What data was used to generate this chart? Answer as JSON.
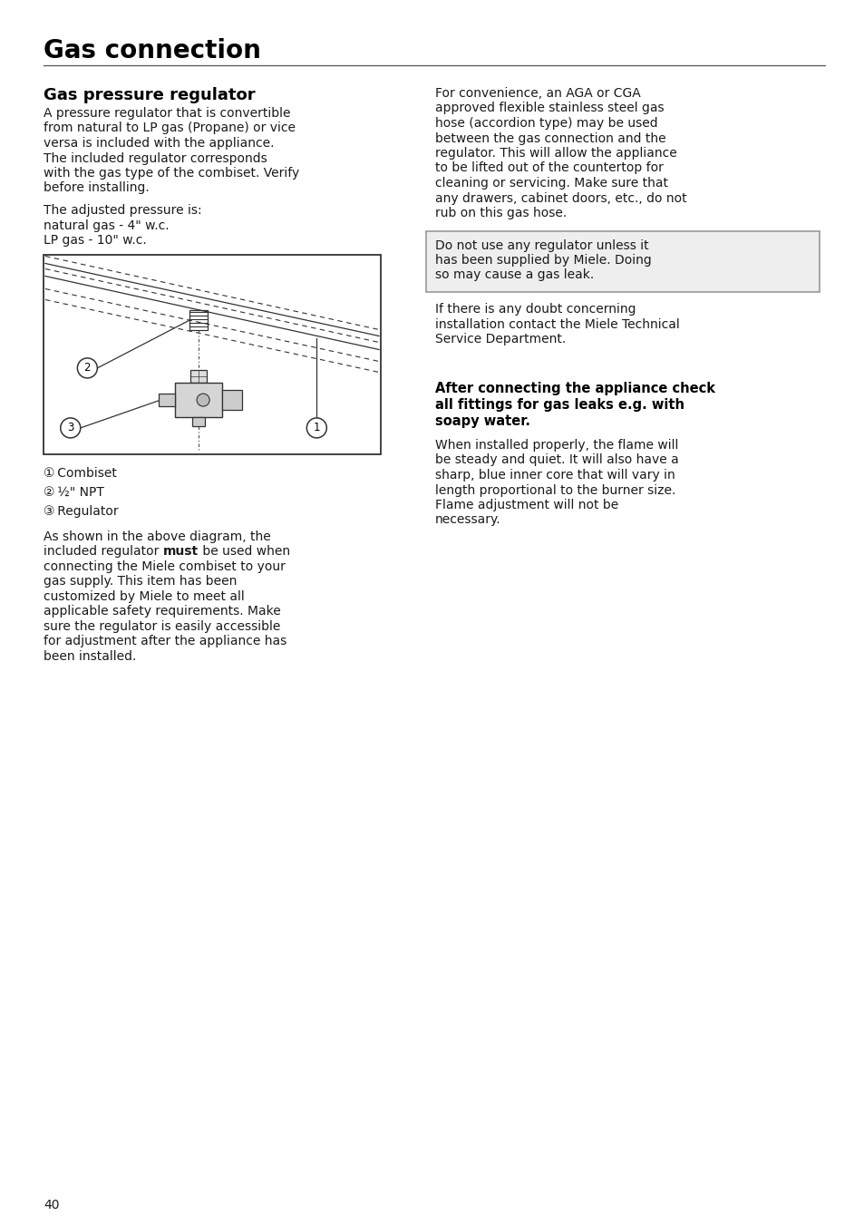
{
  "page_title": "Gas connection",
  "section_title": "Gas pressure regulator",
  "left_para1_lines": [
    "A pressure regulator that is convertible",
    "from natural to LP gas (Propane) or vice",
    "versa is included with the appliance.",
    "The included regulator corresponds",
    "with the gas type of the combiset. Verify",
    "before installing."
  ],
  "left_para2_lines": [
    "The adjusted pressure is:",
    "natural gas - 4\" w.c.",
    "LP gas - 10\" w.c."
  ],
  "label1": "① Combiset",
  "label2": "② ½\" NPT",
  "label3": "③ Regulator",
  "last_para_line1": "As shown in the above diagram, the",
  "last_para_line2a": "included regulator ",
  "last_para_line2b": "must",
  "last_para_line2c": " be used when",
  "last_para_lines_rest": [
    "connecting the Miele combiset to your",
    "gas supply. This item has been",
    "customized by Miele to meet all",
    "applicable safety requirements. Make",
    "sure the regulator is easily accessible",
    "for adjustment after the appliance has",
    "been installed."
  ],
  "right_para1_lines": [
    "For convenience, an AGA or CGA",
    "approved flexible stainless steel gas",
    "hose (accordion type) may be used",
    "between the gas connection and the",
    "regulator. This will allow the appliance",
    "to be lifted out of the countertop for",
    "cleaning or servicing. Make sure that",
    "any drawers, cabinet doors, etc., do not",
    "rub on this gas hose."
  ],
  "warning_lines": [
    "Do not use any regulator unless it",
    "has been supplied by Miele. Doing",
    "so may cause a gas leak."
  ],
  "right_para2_lines": [
    "If there is any doubt concerning",
    "installation contact the Miele Technical",
    "Service Department."
  ],
  "bold_warn_lines": [
    "After connecting the appliance check",
    "all fittings for gas leaks e.g. with",
    "soapy water."
  ],
  "right_para3_lines": [
    "When installed properly, the flame will",
    "be steady and quiet. It will also have a",
    "sharp, blue inner core that will vary in",
    "length proportional to the burner size.",
    "Flame adjustment will not be",
    "necessary."
  ],
  "page_number": "40",
  "bg_color": "#ffffff",
  "text_color": "#1a1a1a",
  "title_color": "#000000",
  "rule_color": "#555555",
  "diag_border_color": "#333333",
  "warn_bg": "#eeeeee",
  "warn_border": "#999999"
}
